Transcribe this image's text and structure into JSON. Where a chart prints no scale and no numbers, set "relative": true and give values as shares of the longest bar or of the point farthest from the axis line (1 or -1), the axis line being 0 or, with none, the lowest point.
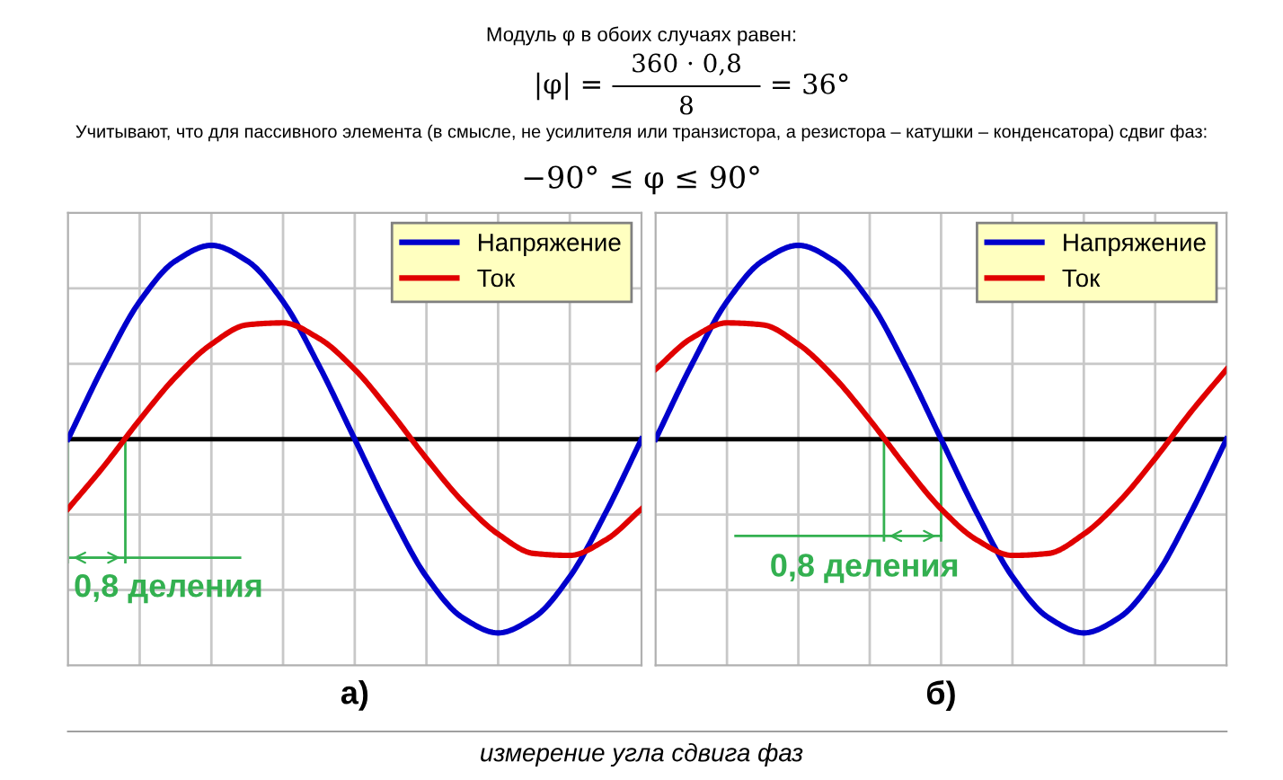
{
  "chart_data": [
    {
      "type": "line",
      "relative": true,
      "xlabel": "а)",
      "grid": true,
      "legend": "top right",
      "marker": "none",
      "line_style": "solid",
      "categories": [
        null,
        null,
        null,
        null,
        null,
        null,
        null,
        null,
        null,
        null,
        null,
        null,
        null,
        null,
        null,
        null,
        null
      ],
      "series": [
        {
          "name": "Напряжение",
          "color": "#0000cc",
          "values": [
            0,
            0.38,
            0.71,
            0.92,
            1,
            0.92,
            0.71,
            0.38,
            0,
            -0.38,
            -0.71,
            -0.92,
            -1,
            -0.92,
            -0.71,
            -0.38,
            0
          ]
        },
        {
          "name": "Ток",
          "color": "#e00000",
          "values": [
            -0.36,
            -0.14,
            0.1,
            0.32,
            0.49,
            0.59,
            0.6,
            0.52,
            0.36,
            0.14,
            -0.1,
            -0.32,
            -0.49,
            -0.59,
            -0.6,
            -0.52,
            -0.36
          ]
        }
      ],
      "annotations": [
        "0,8 деления",
        "Модуль φ в обоих случаях равен:",
        "|φ| =",
        "360 · 0,8",
        "8",
        "= 36°",
        "Учитывают, что для пассивного элемента (в смысле, не усилителя или транзистора, а резистора – катушки – конденсатора) сдвиг фаз:",
        "−90° ≤ φ ≤ 90°",
        "измерение угла сдвига фаз"
      ]
    },
    {
      "type": "line",
      "relative": true,
      "xlabel": "б)",
      "grid": true,
      "legend": "top right",
      "marker": "none",
      "line_style": "solid",
      "categories": [
        null,
        null,
        null,
        null,
        null,
        null,
        null,
        null,
        null,
        null,
        null,
        null,
        null,
        null,
        null,
        null,
        null
      ],
      "series": [
        {
          "name": "Напряжение",
          "color": "#0000cc",
          "values": [
            0,
            0.38,
            0.71,
            0.92,
            1,
            0.92,
            0.71,
            0.38,
            0,
            -0.38,
            -0.71,
            -0.92,
            -1,
            -0.92,
            -0.71,
            -0.38,
            0
          ]
        },
        {
          "name": "Ток",
          "color": "#e00000",
          "values": [
            0.36,
            0.52,
            0.6,
            0.59,
            0.49,
            0.32,
            0.1,
            -0.14,
            -0.36,
            -0.52,
            -0.6,
            -0.59,
            -0.49,
            -0.32,
            -0.1,
            0.14,
            0.36
          ]
        }
      ],
      "annotations": [
        "0,8 деления"
      ]
    }
  ]
}
